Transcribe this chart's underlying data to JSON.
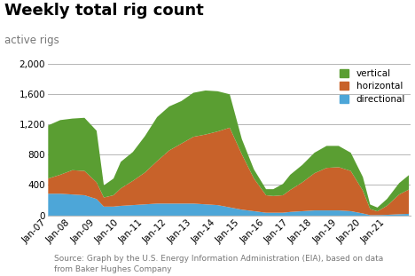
{
  "title": "Weekly total rig count",
  "subtitle": "active rigs",
  "source_text": "Source: Graph by the U.S. Energy Information Administration (EIA), based on data\nfrom Baker Hughes Company",
  "colors": {
    "vertical": "#5a9e32",
    "horizontal": "#c8622a",
    "directional": "#4da6d8"
  },
  "years": [
    2007,
    2007.5,
    2008,
    2008.5,
    2009,
    2009.3,
    2009.7,
    2010,
    2010.5,
    2011,
    2011.5,
    2012,
    2012.5,
    2013,
    2013.5,
    2014,
    2014.5,
    2015,
    2015.5,
    2016,
    2016.3,
    2016.7,
    2017,
    2017.5,
    2018,
    2018.5,
    2019,
    2019.5,
    2020,
    2020.3,
    2020.6,
    2021,
    2021.5,
    2021.9
  ],
  "vertical": [
    700,
    720,
    680,
    700,
    680,
    160,
    220,
    350,
    380,
    480,
    580,
    580,
    560,
    580,
    580,
    530,
    440,
    200,
    120,
    80,
    90,
    150,
    200,
    230,
    270,
    290,
    280,
    240,
    180,
    60,
    50,
    90,
    150,
    190
  ],
  "horizontal": [
    200,
    250,
    320,
    320,
    220,
    120,
    150,
    230,
    320,
    420,
    560,
    700,
    790,
    880,
    920,
    970,
    1050,
    730,
    430,
    230,
    220,
    230,
    290,
    380,
    490,
    560,
    570,
    530,
    300,
    80,
    50,
    120,
    260,
    320
  ],
  "directional": [
    290,
    290,
    280,
    270,
    220,
    120,
    120,
    130,
    140,
    150,
    160,
    160,
    160,
    160,
    150,
    140,
    110,
    80,
    60,
    40,
    40,
    40,
    50,
    60,
    70,
    70,
    70,
    60,
    30,
    8,
    8,
    12,
    20,
    25
  ],
  "ylim": [
    0,
    2000
  ],
  "yticks": [
    0,
    400,
    800,
    1200,
    1600,
    2000
  ],
  "ytick_labels": [
    "0",
    "400",
    "800",
    "1,200",
    "1,600",
    "2,000"
  ],
  "xtick_years": [
    2007,
    2008,
    2009,
    2010,
    2011,
    2012,
    2013,
    2014,
    2015,
    2016,
    2017,
    2018,
    2019,
    2020,
    2021
  ],
  "xtick_labels": [
    "Jan-07",
    "Jan-08",
    "Jan-09",
    "Jan-10",
    "Jan-11",
    "Jan-12",
    "Jan-13",
    "Jan-14",
    "Jan-15",
    "Jan-16",
    "Jan-17",
    "Jan-18",
    "Jan-19",
    "Jan-20",
    "Jan-21"
  ],
  "xlim": [
    2007,
    2022
  ],
  "background_color": "#ffffff",
  "grid_color": "#aaaaaa",
  "title_fontsize": 13,
  "subtitle_fontsize": 8.5,
  "axis_fontsize": 7.5,
  "source_fontsize": 6.5
}
